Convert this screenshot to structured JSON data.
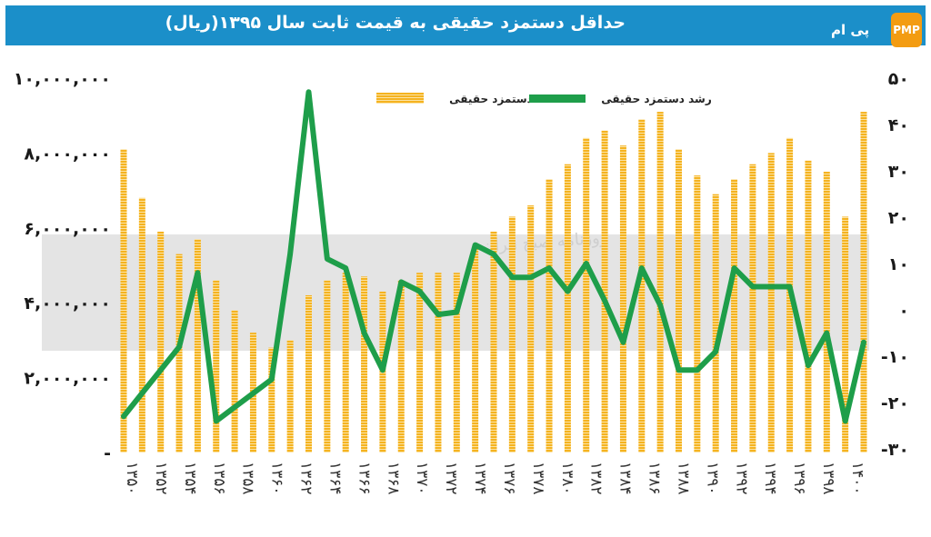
{
  "header": {
    "title": "حداقل دستمزد حقیقی به قیمت ثابت سال ۱۳۹۵(ریال)",
    "brand": "پی ام",
    "brand_badge": "PMP"
  },
  "watermark": {
    "text": "روزنامه صبح ایران"
  },
  "colors": {
    "header": "#1b8fc9",
    "bars": "#f5b320",
    "line": "#1e9e4a",
    "band": "#e4e4e4"
  },
  "chart_data": {
    "type": "bar",
    "title": "حداقل دستمزد حقیقی به قیمت ثابت سال ۱۳۹۵(ریال)",
    "legend": {
      "placement": "top",
      "bar_label": "دستمزد حقیقی",
      "line_label": "رشد دستمزد حقیقی"
    },
    "y_left": {
      "range": [
        0,
        10000000
      ],
      "ticks": [
        "۱۰,۰۰۰,۰۰۰",
        "۸,۰۰۰,۰۰۰",
        "۶,۰۰۰,۰۰۰",
        "۴,۰۰۰,۰۰۰",
        "۲,۰۰۰,۰۰۰",
        "-"
      ],
      "tick_values": [
        10000000,
        8000000,
        6000000,
        4000000,
        2000000,
        0
      ]
    },
    "y_right": {
      "range": [
        -30,
        50
      ],
      "ticks": [
        "۵۰",
        "۴۰",
        "۳۰",
        "۲۰",
        "۱۰",
        "۰",
        "-۱۰",
        "-۲۰",
        "-۳۰"
      ],
      "tick_values": [
        50,
        40,
        30,
        20,
        10,
        0,
        -10,
        -20,
        -30
      ]
    },
    "x_labels": [
      "۱۳۵۰",
      "۱۳۵۲",
      "۱۳۵۴",
      "۱۳۵۶",
      "۱۳۵۸",
      "۱۳۶۰",
      "۱۳۶۲",
      "۱۳۶۴",
      "۱۳۶۶",
      "۱۳۶۸",
      "۱۳۷۰",
      "۱۳۷۲",
      "۱۳۷۴",
      "۱۳۷۶",
      "۱۳۷۸",
      "۱۳۸۰",
      "۱۳۸۲",
      "۱۳۸۴",
      "۱۳۸۶",
      "۱۳۸۸",
      "۱۳۹۰",
      "۱۳۹۲",
      "۱۳۹۴",
      "۱۳۹۶",
      "۱۳۹۸",
      "۱۴۰۰"
    ],
    "series": [
      {
        "name": "دستمزد حقیقی",
        "type": "bar",
        "axis": "left",
        "values": [
          8100000,
          6800000,
          5900000,
          5300000,
          5700000,
          4600000,
          3800000,
          3200000,
          2800000,
          3000000,
          4200000,
          4600000,
          4800000,
          4700000,
          4300000,
          4600000,
          4800000,
          4800000,
          4800000,
          5500000,
          5900000,
          6300000,
          6600000,
          7300000,
          7700000,
          8400000,
          8600000,
          8200000,
          8900000,
          9100000,
          8100000,
          7400000,
          6900000,
          7300000,
          7700000,
          8000000,
          8400000,
          7800000,
          7500000,
          6300000,
          9100000
        ]
      },
      {
        "name": "رشد دستمزد حقیقی",
        "type": "line",
        "axis": "right",
        "values": [
          -23,
          -18,
          -13,
          -8,
          8,
          -24,
          -21,
          -18,
          -15,
          12,
          47,
          11,
          9,
          -5,
          -13,
          6,
          4,
          -1,
          -0.5,
          14,
          12,
          7,
          7,
          9,
          4,
          10,
          2,
          -7,
          9,
          1,
          -13,
          -13,
          -9,
          9,
          5,
          5,
          5,
          -12,
          -5,
          -24,
          -7
        ]
      }
    ]
  }
}
